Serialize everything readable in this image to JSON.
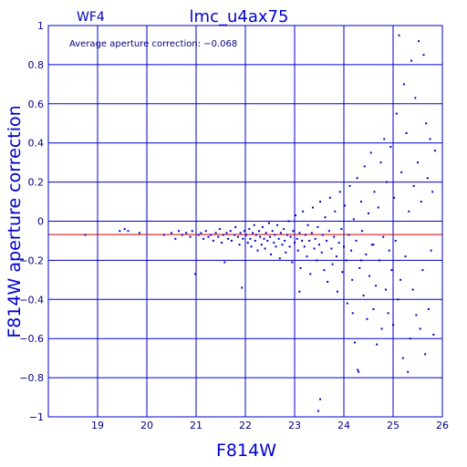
{
  "chart_data": {
    "type": "scatter",
    "title": "lmc_u4ax75",
    "chip_label": "WF4",
    "annotation": "Average aperture correction: −0.068",
    "xlabel": "F814W",
    "ylabel": "F814W aperture correction",
    "xlim": [
      18,
      26
    ],
    "ylim": [
      -1,
      1
    ],
    "x_ticks": [
      19,
      20,
      21,
      22,
      23,
      24,
      25,
      26
    ],
    "y_ticks": [
      -1,
      -0.8,
      -0.6,
      -0.4,
      -0.2,
      0,
      0.2,
      0.4,
      0.6,
      0.8,
      1
    ],
    "x_tick_labels": [
      "19",
      "20",
      "21",
      "22",
      "23",
      "24",
      "25",
      "26"
    ],
    "y_tick_labels": [
      "−1",
      "−0.8",
      "−0.6",
      "−0.4",
      "−0.2",
      "0",
      "0.2",
      "0.4",
      "0.6",
      "0.8",
      "1"
    ],
    "reference_line": {
      "y": -0.068,
      "color": "#d00000"
    },
    "grid": true,
    "colors": {
      "axes": "#0000cc",
      "points": "#0000cc",
      "reference": "#d00000"
    },
    "points": [
      [
        18.75,
        -0.07
      ],
      [
        19.45,
        -0.05
      ],
      [
        19.55,
        -0.04
      ],
      [
        19.62,
        -0.05
      ],
      [
        19.85,
        -0.06
      ],
      [
        20.35,
        -0.07
      ],
      [
        20.5,
        -0.06
      ],
      [
        20.58,
        -0.09
      ],
      [
        20.65,
        -0.05
      ],
      [
        20.72,
        -0.07
      ],
      [
        20.8,
        -0.06
      ],
      [
        20.88,
        -0.08
      ],
      [
        20.92,
        -0.05
      ],
      [
        20.98,
        -0.27
      ],
      [
        21.05,
        -0.07
      ],
      [
        21.1,
        -0.06
      ],
      [
        21.15,
        -0.09
      ],
      [
        21.2,
        -0.05
      ],
      [
        21.25,
        -0.08
      ],
      [
        21.3,
        -0.07
      ],
      [
        21.35,
        -0.1
      ],
      [
        21.4,
        -0.06
      ],
      [
        21.45,
        -0.08
      ],
      [
        21.48,
        -0.04
      ],
      [
        21.52,
        -0.11
      ],
      [
        21.55,
        -0.07
      ],
      [
        21.58,
        -0.21
      ],
      [
        21.62,
        -0.06
      ],
      [
        21.65,
        -0.09
      ],
      [
        21.7,
        -0.05
      ],
      [
        21.72,
        -0.1
      ],
      [
        21.78,
        -0.07
      ],
      [
        21.8,
        -0.03
      ],
      [
        21.85,
        -0.08
      ],
      [
        21.88,
        -0.12
      ],
      [
        21.9,
        -0.06
      ],
      [
        21.93,
        -0.34
      ],
      [
        21.95,
        -0.09
      ],
      [
        21.98,
        -0.05
      ],
      [
        22.02,
        -0.07
      ],
      [
        22.05,
        -0.11
      ],
      [
        22.08,
        -0.04
      ],
      [
        22.1,
        -0.09
      ],
      [
        22.12,
        -0.13
      ],
      [
        22.15,
        -0.06
      ],
      [
        22.18,
        -0.02
      ],
      [
        22.2,
        -0.1
      ],
      [
        22.22,
        -0.07
      ],
      [
        22.25,
        -0.15
      ],
      [
        22.28,
        -0.05
      ],
      [
        22.3,
        -0.08
      ],
      [
        22.33,
        -0.12
      ],
      [
        22.35,
        -0.03
      ],
      [
        22.38,
        -0.09
      ],
      [
        22.4,
        -0.14
      ],
      [
        22.42,
        -0.06
      ],
      [
        22.45,
        -0.1
      ],
      [
        22.48,
        -0.01
      ],
      [
        22.5,
        -0.08
      ],
      [
        22.52,
        -0.17
      ],
      [
        22.55,
        -0.05
      ],
      [
        22.58,
        -0.11
      ],
      [
        22.6,
        -0.07
      ],
      [
        22.62,
        -0.13
      ],
      [
        22.65,
        -0.02
      ],
      [
        22.68,
        -0.09
      ],
      [
        22.7,
        -0.19
      ],
      [
        22.72,
        -0.06
      ],
      [
        22.75,
        -0.12
      ],
      [
        22.78,
        -0.04
      ],
      [
        22.8,
        -0.1
      ],
      [
        22.82,
        -0.16
      ],
      [
        22.85,
        -0.07
      ],
      [
        22.88,
        0.0
      ],
      [
        22.9,
        -0.13
      ],
      [
        22.92,
        -0.08
      ],
      [
        22.95,
        -0.21
      ],
      [
        22.97,
        -0.05
      ],
      [
        23.0,
        -0.11
      ],
      [
        23.02,
        0.03
      ],
      [
        23.05,
        -0.09
      ],
      [
        23.07,
        -0.15
      ],
      [
        23.1,
        -0.06
      ],
      [
        23.12,
        -0.24
      ],
      [
        23.15,
        -0.1
      ],
      [
        23.17,
        0.05
      ],
      [
        23.2,
        -0.13
      ],
      [
        23.22,
        -0.07
      ],
      [
        23.25,
        -0.18
      ],
      [
        23.27,
        -0.02
      ],
      [
        23.3,
        -0.1
      ],
      [
        23.32,
        -0.27
      ],
      [
        23.35,
        -0.06
      ],
      [
        23.37,
        0.07
      ],
      [
        23.4,
        -0.14
      ],
      [
        23.42,
        -0.09
      ],
      [
        23.45,
        -0.2
      ],
      [
        23.47,
        -0.03
      ],
      [
        23.5,
        -0.12
      ],
      [
        23.52,
        0.1
      ],
      [
        23.55,
        -0.16
      ],
      [
        23.57,
        -0.07
      ],
      [
        23.6,
        -0.25
      ],
      [
        23.62,
        0.02
      ],
      [
        23.65,
        -0.1
      ],
      [
        23.67,
        -0.31
      ],
      [
        23.7,
        -0.05
      ],
      [
        23.72,
        0.12
      ],
      [
        23.75,
        -0.14
      ],
      [
        23.77,
        -0.22
      ],
      [
        23.8,
        -0.08
      ],
      [
        23.82,
        0.05
      ],
      [
        23.85,
        -0.18
      ],
      [
        23.87,
        -0.36
      ],
      [
        23.9,
        -0.11
      ],
      [
        23.92,
        0.15
      ],
      [
        23.95,
        -0.04
      ],
      [
        23.97,
        -0.26
      ],
      [
        24.0,
        -0.13
      ],
      [
        24.02,
        0.08
      ],
      [
        24.05,
        -0.2
      ],
      [
        24.07,
        -0.42
      ],
      [
        24.1,
        -0.07
      ],
      [
        24.12,
        0.18
      ],
      [
        24.15,
        -0.15
      ],
      [
        24.17,
        -0.3
      ],
      [
        24.2,
        0.01
      ],
      [
        24.22,
        -0.62
      ],
      [
        24.25,
        -0.1
      ],
      [
        24.27,
        0.22
      ],
      [
        24.3,
        -0.77
      ],
      [
        24.32,
        -0.24
      ],
      [
        24.35,
        0.1
      ],
      [
        24.37,
        -0.05
      ],
      [
        24.4,
        -0.38
      ],
      [
        24.42,
        0.28
      ],
      [
        24.45,
        -0.17
      ],
      [
        24.47,
        -0.5
      ],
      [
        24.5,
        0.04
      ],
      [
        24.52,
        -0.28
      ],
      [
        24.55,
        0.35
      ],
      [
        24.57,
        -0.12
      ],
      [
        24.6,
        -0.45
      ],
      [
        24.62,
        0.15
      ],
      [
        24.65,
        -0.33
      ],
      [
        24.67,
        -0.63
      ],
      [
        24.7,
        0.07
      ],
      [
        24.72,
        -0.2
      ],
      [
        24.75,
        0.3
      ],
      [
        24.77,
        -0.55
      ],
      [
        24.8,
        -0.08
      ],
      [
        24.82,
        0.42
      ],
      [
        24.85,
        -0.35
      ],
      [
        24.87,
        0.2
      ],
      [
        24.9,
        -0.47
      ],
      [
        24.92,
        -0.15
      ],
      [
        24.95,
        0.38
      ],
      [
        24.97,
        -0.25
      ],
      [
        25.0,
        -0.53
      ],
      [
        25.02,
        0.12
      ],
      [
        25.05,
        -0.1
      ],
      [
        25.07,
        0.55
      ],
      [
        25.1,
        -0.4
      ],
      [
        25.12,
        0.95
      ],
      [
        25.15,
        -0.3
      ],
      [
        25.17,
        0.25
      ],
      [
        25.2,
        -0.7
      ],
      [
        25.22,
        0.7
      ],
      [
        25.25,
        -0.18
      ],
      [
        25.27,
        0.45
      ],
      [
        25.3,
        -0.77
      ],
      [
        25.32,
        0.05
      ],
      [
        25.35,
        -0.6
      ],
      [
        25.37,
        0.82
      ],
      [
        25.4,
        -0.35
      ],
      [
        25.42,
        0.18
      ],
      [
        25.45,
        0.63
      ],
      [
        25.47,
        -0.48
      ],
      [
        25.5,
        0.3
      ],
      [
        25.52,
        0.92
      ],
      [
        25.55,
        -0.55
      ],
      [
        25.57,
        0.1
      ],
      [
        25.6,
        -0.25
      ],
      [
        25.62,
        0.85
      ],
      [
        25.65,
        -0.68
      ],
      [
        25.67,
        0.5
      ],
      [
        25.7,
        0.22
      ],
      [
        25.72,
        -0.45
      ],
      [
        25.75,
        0.42
      ],
      [
        25.77,
        -0.15
      ],
      [
        25.8,
        0.15
      ],
      [
        25.82,
        -0.58
      ],
      [
        25.85,
        0.36
      ],
      [
        23.48,
        -0.97
      ],
      [
        23.52,
        -0.91
      ],
      [
        24.28,
        -0.76
      ],
      [
        24.18,
        -0.47
      ],
      [
        23.1,
        -0.36
      ],
      [
        24.6,
        -0.12
      ],
      [
        24.35,
        -0.2
      ]
    ]
  }
}
